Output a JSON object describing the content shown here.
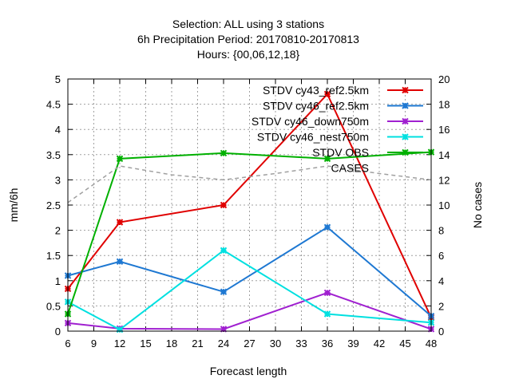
{
  "chart_data": {
    "type": "line",
    "title": [
      "Selection: ALL using     3 stations",
      "6h Precipitation   Period: 20170810-20170813",
      "Hours: {00,06,12,18}"
    ],
    "xlabel": "Forecast length",
    "ylabel": "mm/6h",
    "y2label": "No cases",
    "xlim": [
      6,
      48
    ],
    "ylim": [
      0,
      5
    ],
    "y2lim": [
      0,
      20
    ],
    "xticks": [
      6,
      9,
      12,
      15,
      18,
      21,
      24,
      27,
      30,
      33,
      36,
      39,
      42,
      45,
      48
    ],
    "yticks": [
      "0",
      "0.5",
      "1",
      "1.5",
      "2",
      "2.5",
      "3",
      "3.5",
      "4",
      "4.5",
      "5"
    ],
    "y2ticks": [
      "0",
      "2",
      "4",
      "6",
      "8",
      "10",
      "12",
      "14",
      "16",
      "18",
      "20"
    ],
    "grid": true,
    "legend_position": "top-right",
    "series": [
      {
        "name": "STDV cy43_ref2.5km",
        "color": "#e00000",
        "marker": "star",
        "x": [
          6,
          12,
          24,
          36,
          48
        ],
        "y": [
          0.84,
          2.16,
          2.5,
          4.7,
          0.27
        ]
      },
      {
        "name": "STDV cy46_ref2.5km",
        "color": "#1e78d2",
        "marker": "star",
        "x": [
          6,
          12,
          24,
          36,
          48
        ],
        "y": [
          1.1,
          1.38,
          0.78,
          2.06,
          0.3
        ]
      },
      {
        "name": "STDV cy46_down750m",
        "color": "#a020d0",
        "marker": "star",
        "x": [
          6,
          12,
          24,
          36,
          48
        ],
        "y": [
          0.16,
          0.05,
          0.04,
          0.76,
          0.04
        ]
      },
      {
        "name": "STDV cy46_nest750m",
        "color": "#00e0e0",
        "marker": "star",
        "x": [
          6,
          12,
          24,
          36,
          48
        ],
        "y": [
          0.58,
          0.03,
          1.6,
          0.34,
          0.17
        ]
      },
      {
        "name": "STDV OBS",
        "color": "#00b000",
        "marker": "star",
        "x": [
          6,
          12,
          24,
          36,
          48
        ],
        "y": [
          0.34,
          3.42,
          3.53,
          3.42,
          3.55
        ]
      },
      {
        "name": "CASES",
        "color": "#a0a0a0",
        "marker": "none",
        "dashed": true,
        "axis": "y2",
        "x": [
          6,
          12,
          18,
          24,
          30,
          36,
          42,
          48
        ],
        "y": [
          10.2,
          13.1,
          12.4,
          12.0,
          12.5,
          13.1,
          12.5,
          12.0
        ]
      }
    ]
  }
}
